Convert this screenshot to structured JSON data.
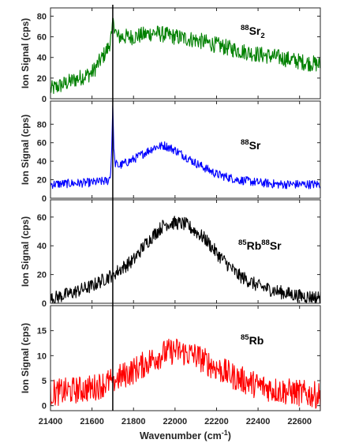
{
  "chart_data": [
    {
      "type": "line",
      "species": {
        "mass": "88",
        "element": "Sr",
        "sub": "2"
      },
      "ylabel": "Ion Signal (cps)",
      "yticks": [
        "0",
        "20",
        "40",
        "60",
        "80"
      ],
      "ylim": [
        0,
        88
      ],
      "color": "#008000",
      "x": [
        21400,
        21500,
        21600,
        21650,
        21680,
        21695,
        21700,
        21720,
        21800,
        21900,
        22000,
        22100,
        22200,
        22300,
        22400,
        22500,
        22600,
        22700
      ],
      "y": [
        9,
        17,
        25,
        40,
        50,
        62,
        78,
        60,
        60,
        64,
        60,
        57,
        52,
        47,
        43,
        40,
        36,
        33
      ],
      "noise": 5
    },
    {
      "type": "line",
      "species": {
        "mass": "88",
        "element": "Sr",
        "sub": ""
      },
      "ylabel": "Ion Signal (cps)",
      "yticks": [
        "0",
        "20",
        "40",
        "60",
        "80"
      ],
      "ylim": [
        0,
        105
      ],
      "color": "#0000ff",
      "x": [
        21400,
        21500,
        21600,
        21680,
        21690,
        21695,
        21700,
        21705,
        21710,
        21730,
        21800,
        21900,
        21950,
        22000,
        22100,
        22200,
        22300,
        22400,
        22500,
        22600,
        22700
      ],
      "y": [
        15,
        16,
        17,
        19,
        28,
        55,
        100,
        55,
        38,
        35,
        42,
        55,
        57,
        52,
        38,
        26,
        20,
        17,
        15,
        15,
        15
      ],
      "noise": 3
    },
    {
      "type": "line",
      "species": {
        "mass1": "85",
        "element1": "Rb",
        "mass2": "88",
        "element2": "Sr"
      },
      "ylabel": "Ion Signal (cps)",
      "yticks": [
        "0",
        "20",
        "40",
        "60"
      ],
      "ylim": [
        0,
        72
      ],
      "color": "#000000",
      "x": [
        21400,
        21500,
        21600,
        21700,
        21800,
        21850,
        21900,
        21950,
        22000,
        22050,
        22100,
        22150,
        22200,
        22300,
        22400,
        22500,
        22600,
        22700
      ],
      "y": [
        3,
        7,
        12,
        20,
        30,
        40,
        48,
        55,
        56,
        55,
        50,
        44,
        35,
        20,
        12,
        8,
        5,
        4
      ],
      "noise": 3
    },
    {
      "type": "line",
      "species": {
        "mass": "85",
        "element": "Rb",
        "sub": ""
      },
      "ylabel": "Ion Signal (cps)",
      "yticks": [
        "0",
        "5",
        "10",
        "15"
      ],
      "ylim": [
        -1,
        20
      ],
      "color": "#ff0000",
      "x": [
        21400,
        21500,
        21600,
        21700,
        21800,
        21900,
        21950,
        22000,
        22050,
        22100,
        22200,
        22300,
        22400,
        22500,
        22600,
        22700
      ],
      "y": [
        2.5,
        3,
        3.5,
        5,
        7,
        9.5,
        10.5,
        11,
        10.5,
        10,
        7.5,
        5.5,
        4,
        3,
        2.5,
        2
      ],
      "noise": 1.7
    }
  ],
  "xaxis": {
    "label_main": "Wavenumber (cm",
    "label_exp": "-1",
    "label_end": ")",
    "xlim": [
      21400,
      22700
    ],
    "ticks": [
      "21400",
      "21600",
      "21800",
      "22000",
      "22200",
      "22400",
      "22600"
    ]
  },
  "marker_line_x": 21700
}
